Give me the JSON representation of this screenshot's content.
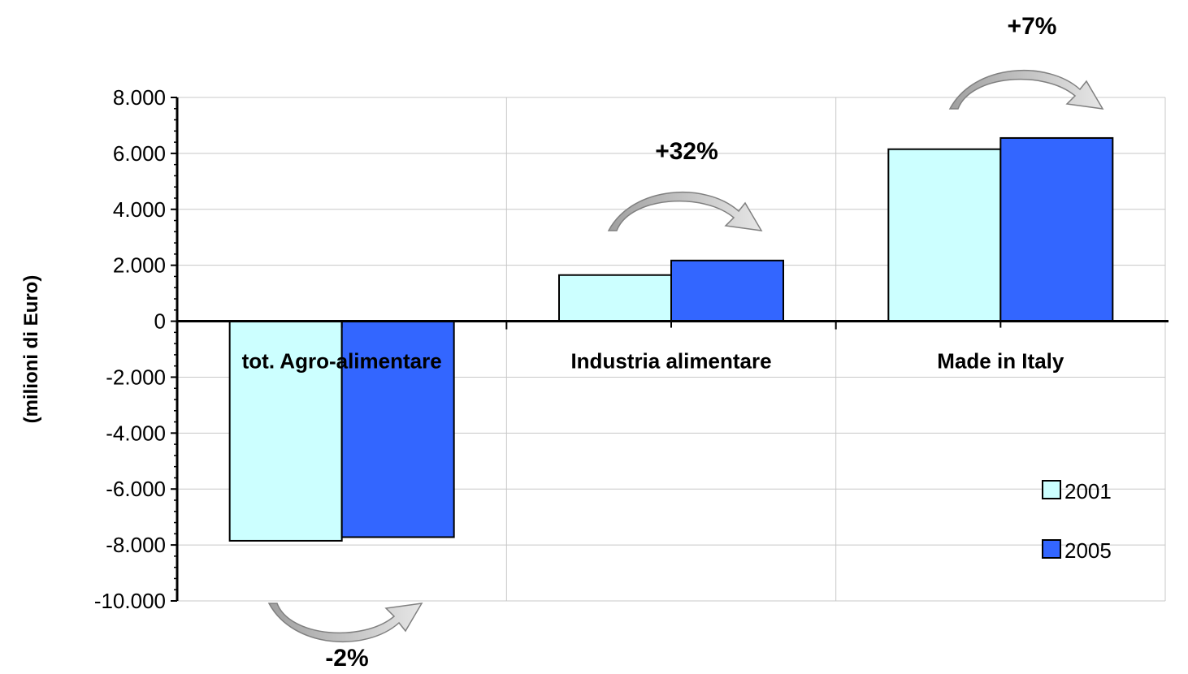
{
  "chart_data": {
    "type": "bar",
    "ylabel": "(milioni di Euro)",
    "ylim": [
      -10000,
      8000
    ],
    "ytick_step": 2000,
    "y_tick_labels": [
      "8.000",
      "6.000",
      "4.000",
      "2.000",
      "0",
      "-2.000",
      "-4.000",
      "-6.000",
      "-8.000",
      "-10.000"
    ],
    "grid": true,
    "categories": [
      "tot. Agro-alimentare",
      "Industria alimentare",
      "Made in Italy"
    ],
    "series": [
      {
        "name": "2001",
        "color": "#ccffff",
        "values": [
          -7850,
          1650,
          6150
        ]
      },
      {
        "name": "2005",
        "color": "#3366ff",
        "values": [
          -7720,
          2170,
          6550
        ]
      }
    ],
    "annotations": [
      "-2%",
      "+32%",
      "+7%"
    ],
    "legend_position": "bottom-right"
  }
}
